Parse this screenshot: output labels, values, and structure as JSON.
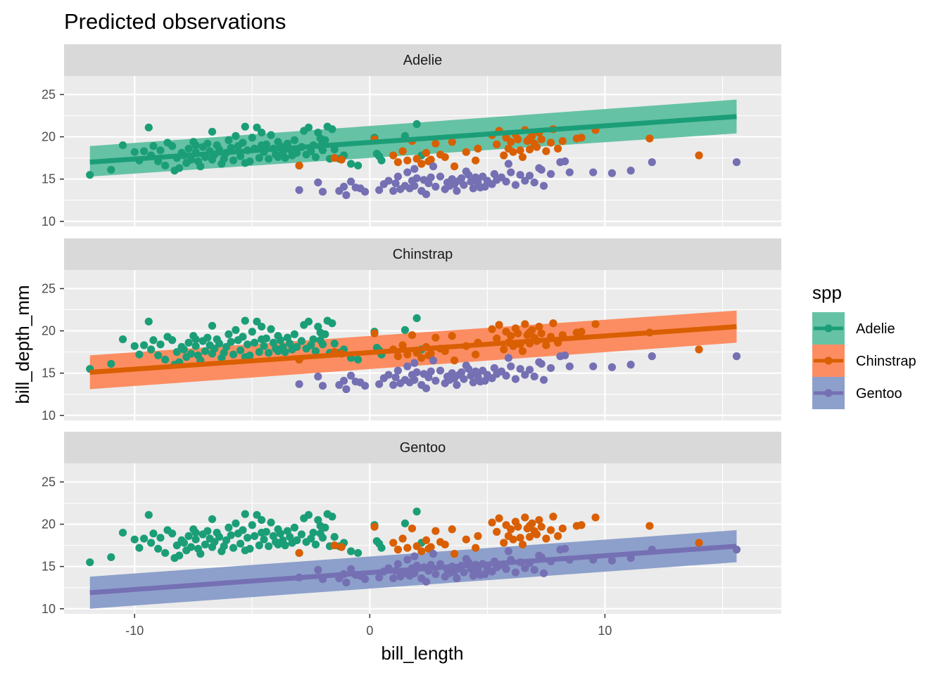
{
  "colors": {
    "panel_bg": "#EBEBEB",
    "strip_bg": "#D9D9D9",
    "grid": "#FFFFFF",
    "series": {
      "Adelie": "#1B9E77",
      "Chinstrap": "#D95F02",
      "Gentoo": "#7570B3"
    },
    "ribbon": {
      "Adelie": "#66C2A5",
      "Chinstrap": "#FC8D62",
      "Gentoo": "#8DA0CB"
    }
  },
  "chart_data": {
    "type": "scatter",
    "title": "Predicted observations",
    "xlabel": "bill_length",
    "ylabel": "bill_depth_mm",
    "xlim": [
      -13,
      17.5
    ],
    "ylim": [
      9.4,
      27.2
    ],
    "x_ticks": [
      -10,
      0,
      10
    ],
    "y_ticks": [
      10,
      15,
      20,
      25
    ],
    "grid": true,
    "legend": {
      "title": "spp",
      "position": "right",
      "entries": [
        "Adelie",
        "Chinstrap",
        "Gentoo"
      ]
    },
    "facets": [
      {
        "label": "Adelie",
        "fit": {
          "x": [
            -11.9,
            15.6
          ],
          "y": [
            17.0,
            22.4
          ]
        },
        "ribbon": {
          "lower": [
            15.3,
            20.4
          ],
          "upper": [
            18.9,
            24.4
          ]
        }
      },
      {
        "label": "Chinstrap",
        "fit": {
          "x": [
            -11.9,
            15.6
          ],
          "y": [
            15.1,
            20.5
          ]
        },
        "ribbon": {
          "lower": [
            13.1,
            18.6
          ],
          "upper": [
            17.1,
            22.4
          ]
        }
      },
      {
        "label": "Gentoo",
        "fit": {
          "x": [
            -11.9,
            15.6
          ],
          "y": [
            11.9,
            17.4
          ]
        },
        "ribbon": {
          "lower": [
            10.0,
            15.5
          ],
          "upper": [
            13.8,
            19.3
          ]
        }
      }
    ],
    "series": [
      {
        "name": "Adelie",
        "points": [
          [
            -11.9,
            15.5
          ],
          [
            -11,
            16.1
          ],
          [
            -10.5,
            19
          ],
          [
            -10,
            18.2
          ],
          [
            -9.8,
            17.2
          ],
          [
            -9.6,
            18.3
          ],
          [
            -9.4,
            21.1
          ],
          [
            -9.3,
            17.8
          ],
          [
            -9.2,
            18.9
          ],
          [
            -9,
            17.1
          ],
          [
            -8.9,
            18.4
          ],
          [
            -8.7,
            16.6
          ],
          [
            -8.6,
            19.3
          ],
          [
            -8.4,
            18.9
          ],
          [
            -8.3,
            16
          ],
          [
            -8.2,
            17.5
          ],
          [
            -8,
            18.1
          ],
          [
            -7.9,
            17.8
          ],
          [
            -7.8,
            16.9
          ],
          [
            -7.7,
            18.6
          ],
          [
            -7.6,
            17.3
          ],
          [
            -7.5,
            19.4
          ],
          [
            -7.4,
            18.2
          ],
          [
            -7.3,
            17.1
          ],
          [
            -7.2,
            16.5
          ],
          [
            -7.1,
            18.8
          ],
          [
            -7,
            17.6
          ],
          [
            -6.9,
            19.2
          ],
          [
            -6.8,
            18.3
          ],
          [
            -6.7,
            20.6
          ],
          [
            -6.6,
            17.9
          ],
          [
            -6.5,
            19
          ],
          [
            -6.4,
            18.5
          ],
          [
            -6.3,
            16.8
          ],
          [
            -6.2,
            17.4
          ],
          [
            -6.1,
            18.1
          ],
          [
            -6,
            19.6
          ],
          [
            -5.9,
            18.7
          ],
          [
            -5.8,
            17.2
          ],
          [
            -5.7,
            20.1
          ],
          [
            -5.6,
            18.9
          ],
          [
            -5.5,
            17.7
          ],
          [
            -5.4,
            19.3
          ],
          [
            -5.3,
            21.2
          ],
          [
            -5.2,
            18.4
          ],
          [
            -5.1,
            17.1
          ],
          [
            -5,
            19.9
          ],
          [
            -4.9,
            18.6
          ],
          [
            -4.8,
            21.1
          ],
          [
            -4.7,
            17.5
          ],
          [
            -4.6,
            20.5
          ],
          [
            -4.5,
            18.2
          ],
          [
            -4.4,
            19.1
          ],
          [
            -4.3,
            17.4
          ],
          [
            -4.2,
            20.2
          ],
          [
            -4.1,
            18.6
          ],
          [
            -4,
            17.9
          ],
          [
            -3.9,
            19.4
          ],
          [
            -3.8,
            18.9
          ],
          [
            -3.7,
            18.1
          ],
          [
            -3.6,
            17.5
          ],
          [
            -3.5,
            19.2
          ],
          [
            -3.4,
            18.5
          ],
          [
            -3.3,
            17.8
          ],
          [
            -3.2,
            19.6
          ],
          [
            -3.1,
            18.1
          ],
          [
            -3,
            16.6
          ],
          [
            -2.9,
            18.8
          ],
          [
            -2.8,
            20.7
          ],
          [
            -2.7,
            17.9
          ],
          [
            -2.6,
            21.1
          ],
          [
            -2.5,
            18.3
          ],
          [
            -2.4,
            19
          ],
          [
            -2.3,
            17.6
          ],
          [
            -2.2,
            20.5
          ],
          [
            -2.1,
            18.9
          ],
          [
            -2,
            18.4
          ],
          [
            -1.9,
            19.6
          ],
          [
            -1.8,
            21.2
          ],
          [
            -1.7,
            17.4
          ],
          [
            -1.6,
            20.9
          ],
          [
            -1.5,
            18.5
          ],
          [
            -1.3,
            17.4
          ],
          [
            -1.1,
            17.8
          ],
          [
            -0.8,
            16.8
          ],
          [
            -0.5,
            16.6
          ],
          [
            0.2,
            19.9
          ],
          [
            0.3,
            18
          ],
          [
            0.4,
            17.7
          ],
          [
            0.5,
            17.2
          ],
          [
            1.5,
            20.1
          ],
          [
            2,
            21.5
          ],
          [
            2.2,
            17.8
          ],
          [
            -4.6,
            19
          ],
          [
            -6.7,
            17.3
          ],
          [
            -8.1,
            16.3
          ],
          [
            -3.9,
            17.6
          ],
          [
            -5.3,
            16.9
          ],
          [
            -7.4,
            19
          ],
          [
            -2.1,
            19.8
          ]
        ]
      },
      {
        "name": "Chinstrap",
        "points": [
          [
            -3,
            16.6
          ],
          [
            -1.5,
            17.5
          ],
          [
            -1.2,
            17.3
          ],
          [
            0.2,
            19.7
          ],
          [
            1,
            17.8
          ],
          [
            1.2,
            17
          ],
          [
            1.4,
            18.3
          ],
          [
            1.6,
            17.2
          ],
          [
            1.8,
            19.5
          ],
          [
            2,
            17.4
          ],
          [
            2.2,
            16.8
          ],
          [
            2.4,
            18.1
          ],
          [
            2.6,
            17.3
          ],
          [
            2.8,
            19.2
          ],
          [
            3,
            17.9
          ],
          [
            3.5,
            19.4
          ],
          [
            3.6,
            16.5
          ],
          [
            4.5,
            17.2
          ],
          [
            4.6,
            18.6
          ],
          [
            5.2,
            20.2
          ],
          [
            5.4,
            19.1
          ],
          [
            5.5,
            20.7
          ],
          [
            5.7,
            17.8
          ],
          [
            5.8,
            19.9
          ],
          [
            6,
            19.4
          ],
          [
            6.1,
            18.2
          ],
          [
            6.2,
            20.3
          ],
          [
            6.3,
            19.7
          ],
          [
            6.4,
            18.4
          ],
          [
            6.5,
            17.6
          ],
          [
            6.6,
            20.8
          ],
          [
            6.7,
            19.5
          ],
          [
            6.8,
            18.5
          ],
          [
            6.9,
            20.1
          ],
          [
            7,
            19.2
          ],
          [
            7.1,
            18.8
          ],
          [
            7.2,
            20.5
          ],
          [
            7.3,
            19.7
          ],
          [
            7.5,
            18.3
          ],
          [
            7.7,
            19.3
          ],
          [
            7.8,
            20.9
          ],
          [
            8,
            18.6
          ],
          [
            8.2,
            19.5
          ],
          [
            8.8,
            19.8
          ],
          [
            9,
            19.9
          ],
          [
            9.6,
            20.8
          ],
          [
            11.9,
            19.8
          ],
          [
            14,
            17.8
          ],
          [
            5.9,
            18.6
          ],
          [
            6.8,
            19.8
          ],
          [
            3.2,
            17.6
          ],
          [
            4.1,
            18.2
          ],
          [
            2.5,
            17.1
          ]
        ]
      },
      {
        "name": "Gentoo",
        "points": [
          [
            -3,
            13.7
          ],
          [
            -2.2,
            14.6
          ],
          [
            -2,
            13.5
          ],
          [
            -1.3,
            13.6
          ],
          [
            -1.1,
            14.1
          ],
          [
            -1,
            13.1
          ],
          [
            -0.8,
            14.7
          ],
          [
            -0.6,
            14
          ],
          [
            -0.4,
            13.9
          ],
          [
            -0.2,
            13.5
          ],
          [
            0.4,
            13.7
          ],
          [
            0.6,
            14.4
          ],
          [
            0.8,
            14.8
          ],
          [
            1.0,
            13.6
          ],
          [
            1.1,
            14.5
          ],
          [
            1.2,
            15.3
          ],
          [
            1.3,
            13.8
          ],
          [
            1.5,
            14.2
          ],
          [
            1.6,
            15.8
          ],
          [
            1.7,
            13.9
          ],
          [
            1.8,
            14.8
          ],
          [
            1.9,
            14.2
          ],
          [
            2,
            15.1
          ],
          [
            2.2,
            13.6
          ],
          [
            2.3,
            14.9
          ],
          [
            2.4,
            13.2
          ],
          [
            2.5,
            14.5
          ],
          [
            2.6,
            15.2
          ],
          [
            2.8,
            14.1
          ],
          [
            3,
            15.3
          ],
          [
            3.2,
            13.8
          ],
          [
            3.3,
            14.6
          ],
          [
            3.4,
            14.2
          ],
          [
            3.5,
            15
          ],
          [
            3.6,
            14.4
          ],
          [
            3.7,
            13.6
          ],
          [
            3.8,
            14.8
          ],
          [
            3.9,
            15.1
          ],
          [
            4,
            14.3
          ],
          [
            4.2,
            15.5
          ],
          [
            4.3,
            14.7
          ],
          [
            4.4,
            13.9
          ],
          [
            4.5,
            15.2
          ],
          [
            4.6,
            14.6
          ],
          [
            4.7,
            14
          ],
          [
            4.8,
            15.3
          ],
          [
            5,
            14.8
          ],
          [
            5.2,
            14.4
          ],
          [
            5.3,
            15.6
          ],
          [
            5.4,
            14.9
          ],
          [
            5.6,
            15.2
          ],
          [
            5.8,
            14.7
          ],
          [
            6,
            15.8
          ],
          [
            6.2,
            14.3
          ],
          [
            6.4,
            15.5
          ],
          [
            6.6,
            14.8
          ],
          [
            6.8,
            15.4
          ],
          [
            7,
            14.6
          ],
          [
            7.3,
            16.1
          ],
          [
            7.4,
            14.2
          ],
          [
            7.7,
            15.6
          ],
          [
            8.1,
            17
          ],
          [
            8.3,
            17.1
          ],
          [
            8.5,
            15.8
          ],
          [
            9.5,
            15.8
          ],
          [
            10.3,
            15.7
          ],
          [
            11.1,
            16
          ],
          [
            12,
            17
          ],
          [
            15.6,
            17
          ],
          [
            1.9,
            16.2
          ],
          [
            4.1,
            15.9
          ],
          [
            2.7,
            16.5
          ],
          [
            5.9,
            16.8
          ],
          [
            7.2,
            16.3
          ],
          [
            4.9,
            14.1
          ]
        ]
      }
    ]
  }
}
